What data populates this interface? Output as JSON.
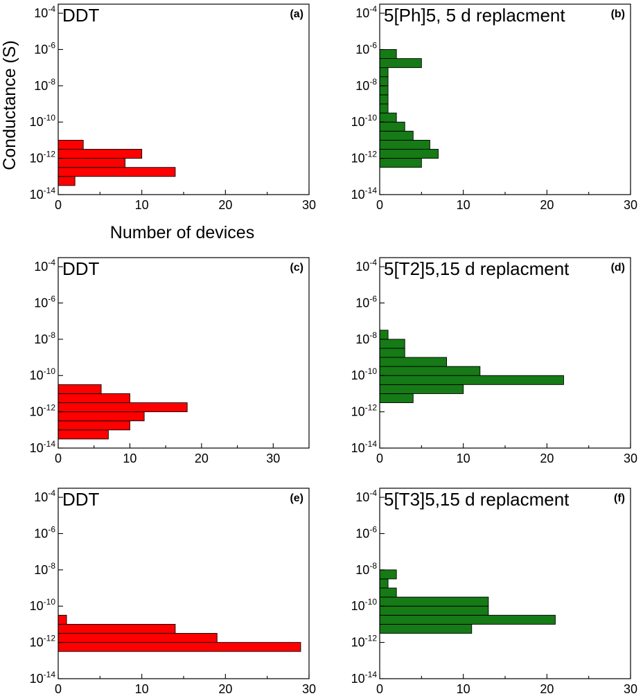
{
  "figure": {
    "ylabel": "Conductance (S)",
    "xlabel": "Number of devices"
  },
  "colors": {
    "red": "#ff0000",
    "green": "#167a16"
  },
  "chart_data": [
    {
      "type": "bar",
      "orientation": "horizontal",
      "panel": "(a)",
      "title": "DDT",
      "color": "red",
      "xlim": [
        0,
        30
      ],
      "ylim_log10": [
        -14,
        -3.5
      ],
      "y_scale": "log",
      "xticks": [
        "0",
        "10",
        "20",
        "30"
      ],
      "yticks_exp": [
        "-14",
        "-12",
        "-10",
        "-8",
        "-6",
        "-4"
      ],
      "bins_log10": [
        [
          -13.5,
          -13.0
        ],
        [
          -13.0,
          -12.5
        ],
        [
          -12.5,
          -12.0
        ],
        [
          -12.0,
          -11.5
        ],
        [
          -11.5,
          -11.0
        ],
        [
          -11.0,
          -10.5
        ]
      ],
      "values": [
        2,
        14,
        8,
        10,
        3,
        0
      ]
    },
    {
      "type": "bar",
      "orientation": "horizontal",
      "panel": "(b)",
      "title": "5[Ph]5, 5 d replacment",
      "color": "green",
      "xlim": [
        0,
        30
      ],
      "ylim_log10": [
        -14,
        -3.5
      ],
      "y_scale": "log",
      "xticks": [
        "0",
        "10",
        "20",
        "30"
      ],
      "yticks_exp": [
        "-14",
        "-12",
        "-10",
        "-8",
        "-6",
        "-4"
      ],
      "bins_log10": [
        [
          -12.5,
          -12.0
        ],
        [
          -12.0,
          -11.5
        ],
        [
          -11.5,
          -11.0
        ],
        [
          -11.0,
          -10.5
        ],
        [
          -10.5,
          -10.0
        ],
        [
          -10.0,
          -9.5
        ],
        [
          -9.5,
          -9.0
        ],
        [
          -9.0,
          -8.5
        ],
        [
          -8.5,
          -8.0
        ],
        [
          -8.0,
          -7.5
        ],
        [
          -7.5,
          -7.0
        ],
        [
          -7.0,
          -6.5
        ],
        [
          -6.5,
          -6.0
        ]
      ],
      "values": [
        5,
        7,
        6,
        4,
        3,
        2,
        1,
        1,
        1,
        1,
        1,
        5,
        2
      ]
    },
    {
      "type": "bar",
      "orientation": "horizontal",
      "panel": "(c)",
      "title": "DDT",
      "color": "red",
      "xlim": [
        0,
        35
      ],
      "ylim_log10": [
        -14,
        -3.5
      ],
      "y_scale": "log",
      "xticks": [
        "0",
        "10",
        "20",
        "30"
      ],
      "yticks_exp": [
        "-14",
        "-12",
        "-10",
        "-8",
        "-6",
        "-4"
      ],
      "bins_log10": [
        [
          -13.5,
          -13.0
        ],
        [
          -13.0,
          -12.5
        ],
        [
          -12.5,
          -12.0
        ],
        [
          -12.0,
          -11.5
        ],
        [
          -11.5,
          -11.0
        ],
        [
          -11.0,
          -10.5
        ],
        [
          -10.5,
          -10.0
        ]
      ],
      "values": [
        7,
        10,
        12,
        18,
        10,
        6,
        0
      ]
    },
    {
      "type": "bar",
      "orientation": "horizontal",
      "panel": "(d)",
      "title": "5[T2]5,15 d replacment",
      "color": "green",
      "xlim": [
        0,
        30
      ],
      "ylim_log10": [
        -14,
        -3.5
      ],
      "y_scale": "log",
      "xticks": [
        "0",
        "10",
        "20",
        "30"
      ],
      "yticks_exp": [
        "-14",
        "-12",
        "-10",
        "-8",
        "-6",
        "-4"
      ],
      "bins_log10": [
        [
          -11.5,
          -11.0
        ],
        [
          -11.0,
          -10.5
        ],
        [
          -10.5,
          -10.0
        ],
        [
          -10.0,
          -9.5
        ],
        [
          -9.5,
          -9.0
        ],
        [
          -9.0,
          -8.5
        ],
        [
          -8.5,
          -8.0
        ],
        [
          -8.0,
          -7.5
        ],
        [
          -7.5,
          -7.0
        ]
      ],
      "values": [
        4,
        10,
        22,
        12,
        8,
        3,
        3,
        1,
        0
      ]
    },
    {
      "type": "bar",
      "orientation": "horizontal",
      "panel": "(e)",
      "title": "DDT",
      "color": "red",
      "xlim": [
        0,
        30
      ],
      "ylim_log10": [
        -14,
        -3.5
      ],
      "y_scale": "log",
      "xticks": [
        "0",
        "10",
        "20",
        "30"
      ],
      "yticks_exp": [
        "-14",
        "-12",
        "-10",
        "-8",
        "-6",
        "-4"
      ],
      "bins_log10": [
        [
          -12.5,
          -12.0
        ],
        [
          -12.0,
          -11.5
        ],
        [
          -11.5,
          -11.0
        ],
        [
          -11.0,
          -10.5
        ]
      ],
      "values": [
        29,
        19,
        14,
        1
      ]
    },
    {
      "type": "bar",
      "orientation": "horizontal",
      "panel": "(f)",
      "title": "5[T3]5,15 d replacment",
      "color": "green",
      "xlim": [
        0,
        30
      ],
      "ylim_log10": [
        -14,
        -3.5
      ],
      "y_scale": "log",
      "xticks": [
        "0",
        "10",
        "20",
        "30"
      ],
      "yticks_exp": [
        "-14",
        "-12",
        "-10",
        "-8",
        "-6",
        "-4"
      ],
      "bins_log10": [
        [
          -11.5,
          -11.0
        ],
        [
          -11.0,
          -10.5
        ],
        [
          -10.5,
          -10.0
        ],
        [
          -10.0,
          -9.5
        ],
        [
          -9.5,
          -9.0
        ],
        [
          -9.0,
          -8.5
        ],
        [
          -8.5,
          -8.0
        ]
      ],
      "values": [
        11,
        21,
        13,
        13,
        2,
        1,
        2
      ]
    }
  ]
}
